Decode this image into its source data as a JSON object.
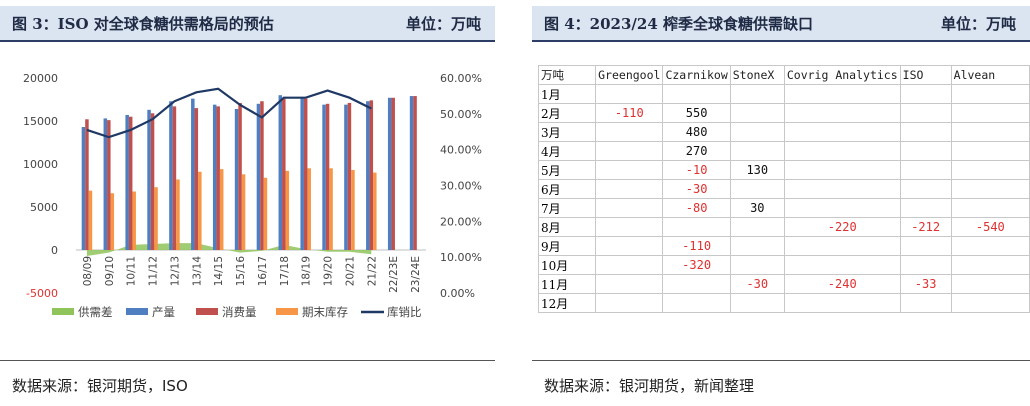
{
  "left": {
    "title": "图 3：ISO 对全球食糖供需格局的预估",
    "unit": "单位：万吨",
    "source": "数据来源：银河期货，ISO"
  },
  "right": {
    "title": "图 4：2023/24 榨季全球食糖供需缺口",
    "unit": "单位：万吨",
    "source": "数据来源：银河期货，新闻整理"
  },
  "chart_data": {
    "type": "bar",
    "categories": [
      "08/09",
      "09/10",
      "10/11",
      "11/12",
      "12/13",
      "13/14",
      "14/15",
      "15/16",
      "16/17",
      "17/18",
      "18/19",
      "19/20",
      "20/21",
      "21/22",
      "22/23E",
      "23/24E"
    ],
    "ylim": [
      -5000,
      20000
    ],
    "yticks": [
      "20000",
      "15000",
      "10000",
      "5000",
      "0",
      "-5000"
    ],
    "y2lim": [
      0,
      60
    ],
    "y2ticks": [
      "60.00%",
      "50.00%",
      "40.00%",
      "30.00%",
      "20.00%",
      "10.00%",
      "0.00%"
    ],
    "grid": false,
    "legend_position": "bottom",
    "colors": {
      "gap": "#8fc45a",
      "production": "#4f7fc0",
      "consumption": "#c0504d",
      "stock": "#f79646",
      "ratio": "#1f3864"
    },
    "series": [
      {
        "key": "gap",
        "name": "供需差",
        "type": "area",
        "values": [
          -700,
          -300,
          600,
          700,
          800,
          800,
          200,
          -300,
          -100,
          600,
          100,
          -200,
          -200,
          -500,
          null,
          null
        ]
      },
      {
        "key": "production",
        "name": "产量",
        "type": "bar",
        "values": [
          14300,
          15300,
          15700,
          16300,
          17300,
          17600,
          16900,
          16400,
          17000,
          18000,
          17700,
          16900,
          16900,
          17300,
          17700,
          17900
        ]
      },
      {
        "key": "consumption",
        "name": "消费量",
        "type": "bar",
        "values": [
          15200,
          15100,
          15500,
          15900,
          16700,
          16500,
          16700,
          17100,
          17300,
          17600,
          17600,
          17000,
          17100,
          17400,
          17700,
          17900
        ]
      },
      {
        "key": "stock",
        "name": "期末库存",
        "type": "bar",
        "values": [
          6900,
          6600,
          6800,
          7300,
          8200,
          9100,
          9400,
          8800,
          8400,
          9200,
          9500,
          9500,
          9300,
          9000,
          null,
          null
        ]
      },
      {
        "key": "ratio",
        "name": "库销比",
        "type": "line",
        "axis": "right",
        "values": [
          45.5,
          43.5,
          45.5,
          48.5,
          53.5,
          56,
          57,
          52.5,
          49,
          54.5,
          54.5,
          56.5,
          54.5,
          51.5,
          null,
          null
        ]
      }
    ]
  },
  "table": {
    "headers": [
      "万吨",
      "Greengool",
      "Czarnikow",
      "StoneX",
      "Covrig Analytics",
      "ISO",
      "Alvean"
    ],
    "rows": [
      [
        "1月",
        "",
        "",
        "",
        "",
        "",
        ""
      ],
      [
        "2月",
        "-110",
        "550",
        "",
        "",
        "",
        ""
      ],
      [
        "3月",
        "",
        "480",
        "",
        "",
        "",
        ""
      ],
      [
        "4月",
        "",
        "270",
        "",
        "",
        "",
        ""
      ],
      [
        "5月",
        "",
        "-10",
        "130",
        "",
        "",
        ""
      ],
      [
        "6月",
        "",
        "-30",
        "",
        "",
        "",
        ""
      ],
      [
        "7月",
        "",
        "-80",
        "30",
        "",
        "",
        ""
      ],
      [
        "8月",
        "",
        "",
        "",
        "-220",
        "-212",
        "-540"
      ],
      [
        "9月",
        "",
        "-110",
        "",
        "",
        "",
        ""
      ],
      [
        "10月",
        "",
        "-320",
        "",
        "",
        "",
        ""
      ],
      [
        "11月",
        "",
        "",
        "-30",
        "-240",
        "-33",
        ""
      ],
      [
        "12月",
        "",
        "",
        "",
        "",
        "",
        ""
      ]
    ]
  }
}
